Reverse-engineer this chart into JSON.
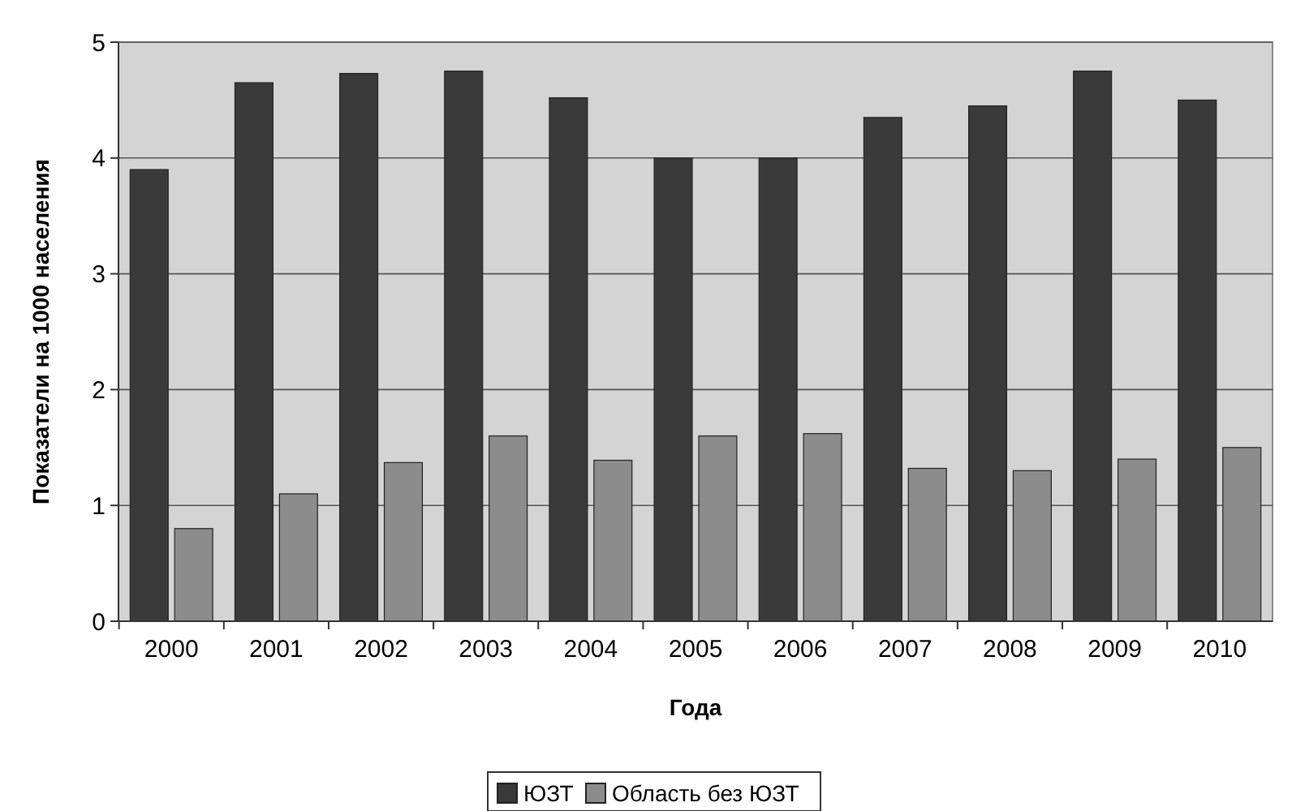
{
  "chart_data": {
    "type": "bar",
    "xlabel": "Года",
    "ylabel": "Показатели на 1000 населения",
    "categories": [
      "2000",
      "2001",
      "2002",
      "2003",
      "2004",
      "2005",
      "2006",
      "2007",
      "2008",
      "2009",
      "2010"
    ],
    "series": [
      {
        "name": "ЮЗТ",
        "color": "#3a3a3a",
        "values": [
          3.9,
          4.65,
          4.73,
          4.75,
          4.52,
          4.0,
          4.0,
          4.35,
          4.45,
          4.75,
          4.5
        ]
      },
      {
        "name": "Область без ЮЗТ",
        "color": "#8c8c8c",
        "values": [
          0.8,
          1.1,
          1.37,
          1.6,
          1.39,
          1.6,
          1.62,
          1.32,
          1.3,
          1.4,
          1.5
        ]
      }
    ],
    "ylim": [
      0,
      5
    ],
    "yticks": [
      0,
      1,
      2,
      3,
      4,
      5
    ],
    "grid": "y",
    "legend": "bottom"
  }
}
